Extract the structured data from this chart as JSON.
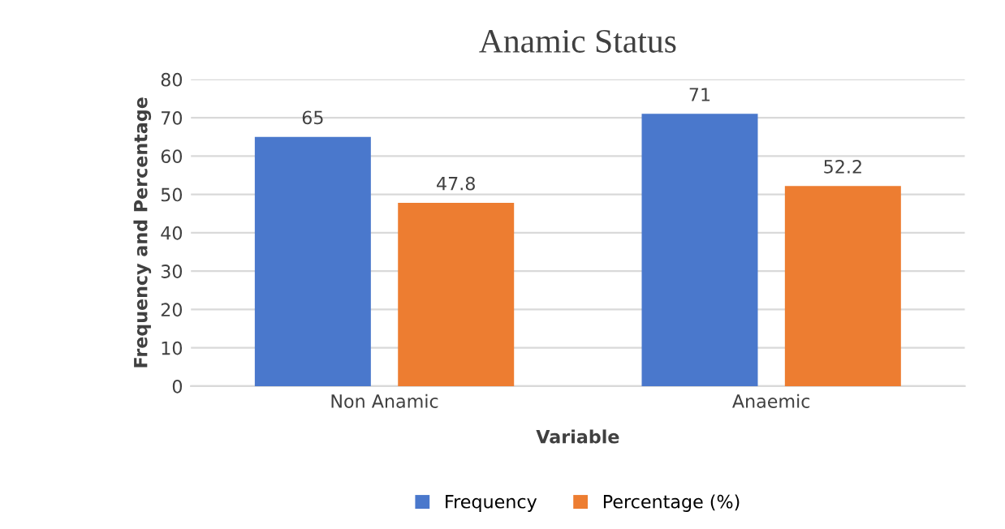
{
  "chart_data": {
    "type": "bar",
    "title": "Anamic Status",
    "xlabel": "Variable",
    "ylabel": "Frequency and Percentage",
    "categories": [
      "Non Anamic",
      "Anaemic"
    ],
    "series": [
      {
        "name": "Frequency",
        "color": "#4a78cc",
        "values": [
          65,
          71
        ]
      },
      {
        "name": "Percentage (%)",
        "color": "#ed7d31",
        "values": [
          47.8,
          52.2
        ]
      }
    ],
    "ylim": [
      0,
      80
    ],
    "yticks": [
      0,
      10,
      20,
      30,
      40,
      50,
      60,
      70,
      80
    ],
    "grid": "y",
    "legend": "bottom",
    "data_labels": true
  }
}
